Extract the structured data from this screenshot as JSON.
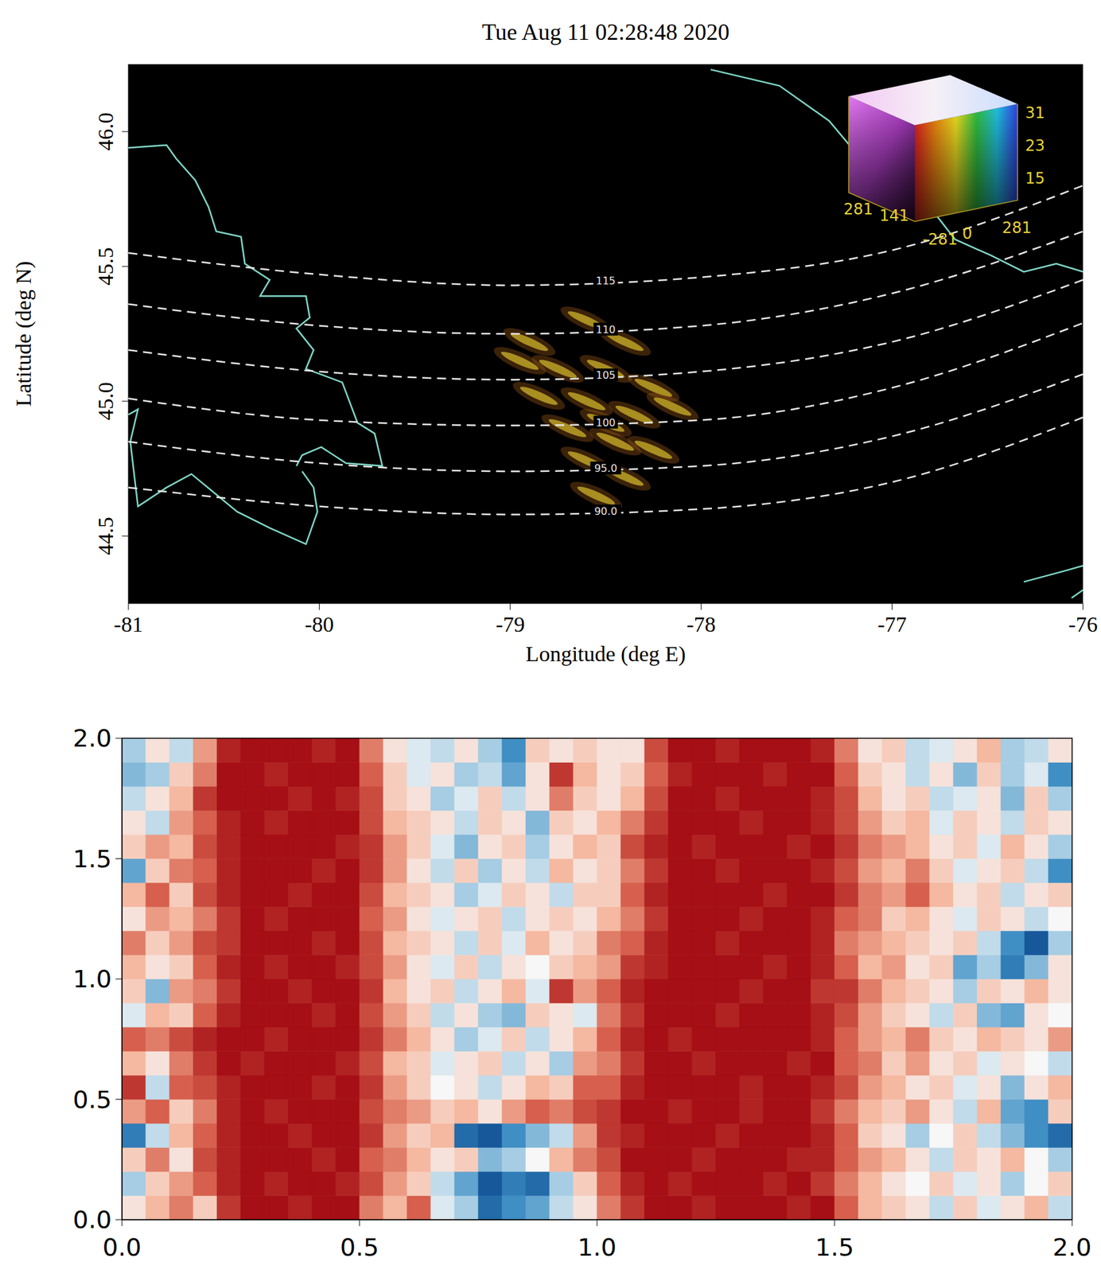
{
  "chart_data": [
    {
      "type": "map",
      "title": "Tue Aug 11 02:28:48 2020",
      "x_label": "Longitude (deg E)",
      "y_label": "Latitude (deg N)",
      "xlim": [
        -81,
        -76
      ],
      "xticks": [
        -81,
        -80,
        -79,
        -78,
        -77,
        -76
      ],
      "ylim": [
        44.25,
        46.25
      ],
      "yticks": [
        44.5,
        {
          "value": 45,
          "label": "45.0"
        },
        45.5,
        {
          "value": 46,
          "label": "46.0"
        }
      ],
      "grid": false,
      "contours": [
        {
          "label": "115",
          "color": "#e6e6e6",
          "line_style": "dashed",
          "x": [
            -81,
            -80,
            -79,
            -78,
            -77,
            -76
          ],
          "y": [
            45.55,
            45.47,
            45.43,
            45.46,
            45.56,
            45.8
          ]
        },
        {
          "label": "110",
          "color": "#e6e6e6",
          "line_style": "dashed",
          "x": [
            -81,
            -80,
            -79,
            -78,
            -77,
            -76
          ],
          "y": [
            45.36,
            45.28,
            45.25,
            45.28,
            45.4,
            45.63
          ]
        },
        {
          "label": "105",
          "color": "#e6e6e6",
          "line_style": "dashed",
          "x": [
            -81,
            -80,
            -79,
            -78,
            -77,
            -76
          ],
          "y": [
            45.19,
            45.11,
            45.08,
            45.11,
            45.22,
            45.45
          ]
        },
        {
          "label": "100",
          "color": "#e6e6e6",
          "line_style": "dashed",
          "x": [
            -81,
            -80,
            -79,
            -78,
            -77,
            -76
          ],
          "y": [
            45.01,
            44.93,
            44.91,
            44.93,
            45.05,
            45.29
          ]
        },
        {
          "label": "95.0",
          "color": "#e6e6e6",
          "line_style": "dashed",
          "x": [
            -81,
            -80,
            -79,
            -78,
            -77,
            -76
          ],
          "y": [
            44.85,
            44.77,
            44.74,
            44.76,
            44.87,
            45.1
          ]
        },
        {
          "label": "90.0",
          "color": "#e6e6e6",
          "line_style": "dashed",
          "x": [
            -81,
            -80,
            -79,
            -78,
            -77,
            -76
          ],
          "y": [
            44.68,
            44.61,
            44.58,
            44.6,
            44.7,
            44.94
          ]
        }
      ],
      "coastlines": [
        {
          "color": "#7fd6c6",
          "line_style": "solid",
          "x": [
            -81,
            -80.8,
            -80.75,
            -80.65,
            -80.58,
            -80.54,
            -80.41,
            -80.39,
            -80.26,
            -80.31,
            -80.07,
            -80.05,
            -80.12,
            -80.03,
            -80.07,
            -79.88,
            -79.8,
            -79.71,
            -79.67,
            -79.86,
            -79.99,
            -80.09,
            -80.12
          ],
          "y": [
            45.94,
            45.95,
            45.9,
            45.82,
            45.72,
            45.63,
            45.61,
            45.51,
            45.45,
            45.39,
            45.39,
            45.31,
            45.27,
            45.19,
            45.12,
            45.07,
            44.92,
            44.88,
            44.76,
            44.77,
            44.83,
            44.8,
            44.76
          ]
        },
        {
          "color": "#7fd6c6",
          "line_style": "solid",
          "x": [
            -81,
            -80.95,
            -80.99,
            -80.95,
            -80.8,
            -80.67,
            -80.43,
            -80.26,
            -80.07,
            -80.01,
            -80.03,
            -80.09
          ],
          "y": [
            44.95,
            44.97,
            44.85,
            44.61,
            44.68,
            44.73,
            44.59,
            44.53,
            44.47,
            44.59,
            44.68,
            44.74
          ]
        },
        {
          "color": "#7fd6c6",
          "line_style": "solid",
          "x": [
            -77.95,
            -77.59,
            -77.33,
            -77.2,
            -76.99,
            -76.78,
            -76.67,
            -76.48,
            -76.31,
            -76.14,
            -76
          ],
          "y": [
            46.23,
            46.17,
            46.04,
            45.93,
            45.81,
            45.7,
            45.6,
            45.54,
            45.48,
            45.51,
            45.48
          ]
        },
        {
          "color": "#7fd6c6",
          "line_style": "solid",
          "x": [
            -76.31,
            -76.1,
            -76
          ],
          "y": [
            44.33,
            44.37,
            44.39
          ]
        },
        {
          "color": "#7fd6c6",
          "line_style": "solid",
          "x": [
            -76.06,
            -76
          ],
          "y": [
            44.27,
            44.3
          ]
        }
      ],
      "airglow": {
        "color": "#d8bc2c",
        "x": [
          -78.9,
          -78.6,
          -78.4,
          -78.75,
          -78.5,
          -78.25,
          -78.85,
          -78.6,
          -78.35,
          -78.15,
          -78.7,
          -78.45,
          -78.25,
          -78.6,
          -78.4,
          -78.55,
          -78.95,
          -78.5
        ],
        "y": [
          45.22,
          45.3,
          45.22,
          45.12,
          45.12,
          45.05,
          45.02,
          45.0,
          44.95,
          44.98,
          44.9,
          44.85,
          44.82,
          44.78,
          44.72,
          44.65,
          45.15,
          44.92
        ]
      },
      "color_cube": {
        "vertical_ticks": [
          31,
          23,
          15
        ],
        "left_ticks": [
          281,
          141
        ],
        "front_ticks": [
          -281,
          0,
          281
        ]
      }
    },
    {
      "type": "heatmap",
      "xlim": [
        0,
        2
      ],
      "xticks": [
        {
          "value": 0,
          "label": "0.0"
        },
        0.5,
        {
          "value": 1,
          "label": "1.0"
        },
        1.5,
        {
          "value": 2,
          "label": "2.0"
        }
      ],
      "ylim": [
        0,
        2
      ],
      "yticks": [
        {
          "value": 0,
          "label": "0.0"
        },
        0.5,
        {
          "value": 1,
          "label": "1.0"
        },
        1.5,
        {
          "value": 2,
          "label": "2.0"
        }
      ],
      "grid": false,
      "clim": [
        -1,
        1
      ],
      "cells": [
        [
          0.1,
          0.3,
          0.5,
          0.2,
          0.8,
          1,
          1,
          0.9,
          1,
          1,
          0.5,
          0.3,
          0.6,
          -0.1,
          -0.3,
          -0.8,
          -0.6,
          -0.5,
          -0.2,
          0.1,
          0.5,
          0.8,
          1,
          1,
          0.9,
          1,
          1,
          1,
          0.9,
          1,
          0.6,
          0.3,
          0.2,
          0.1,
          -0.2,
          0.2,
          -0.1,
          0.1,
          0.3,
          -0.2
        ],
        [
          -0.3,
          0.2,
          0.4,
          0.6,
          0.9,
          1,
          0.9,
          1,
          1,
          0.9,
          0.7,
          0.4,
          0.2,
          -0.2,
          -0.5,
          -0.9,
          -0.7,
          -0.8,
          -0.3,
          0.2,
          0.6,
          0.9,
          1,
          0.9,
          1,
          1,
          1,
          0.9,
          1,
          0.8,
          0.5,
          0.3,
          0.1,
          0,
          0.2,
          -0.1,
          0.1,
          -0.3,
          0,
          0.2
        ],
        [
          0.2,
          0.5,
          0.1,
          0.7,
          0.9,
          1,
          1,
          1,
          0.9,
          1,
          0.6,
          0.5,
          0.3,
          0.1,
          0.2,
          -0.4,
          -0.3,
          0,
          0.3,
          0.5,
          0.7,
          1,
          1,
          1,
          0.9,
          1,
          1,
          1,
          0.9,
          0.9,
          0.6,
          0.4,
          0.3,
          0.1,
          -0.2,
          0.2,
          0.1,
          0.3,
          0,
          -0.3
        ],
        [
          -0.7,
          -0.2,
          0.3,
          0.6,
          0.9,
          1,
          1,
          0.9,
          1,
          1,
          0.8,
          0.4,
          0.2,
          0.3,
          -0.8,
          -0.9,
          -0.6,
          -0.4,
          -0.2,
          0.4,
          0.8,
          0.9,
          1,
          1,
          1,
          0.9,
          1,
          1,
          1,
          0.9,
          0.6,
          0.2,
          0.1,
          -0.3,
          0,
          0.2,
          -0.2,
          -0.4,
          -0.6,
          -0.8
        ],
        [
          0.4,
          0.6,
          0.2,
          0.5,
          0.9,
          1,
          0.9,
          1,
          1,
          1,
          0.7,
          0.5,
          0.4,
          0.2,
          0.3,
          0.1,
          0.4,
          0.6,
          0.5,
          0.7,
          0.8,
          1,
          1,
          0.9,
          1,
          1,
          0.9,
          1,
          1,
          0.8,
          0.5,
          0.3,
          0.2,
          0.4,
          0.1,
          -0.2,
          0.3,
          -0.5,
          -0.6,
          0.2
        ],
        [
          0.8,
          -0.2,
          0.6,
          0.7,
          0.9,
          1,
          1,
          1,
          0.9,
          1,
          0.8,
          0.4,
          0.2,
          0,
          0.1,
          -0.2,
          0.1,
          0.3,
          0.2,
          0.6,
          0.6,
          0.9,
          1,
          1,
          1,
          1,
          0.9,
          1,
          1,
          0.9,
          0.7,
          0.4,
          0.3,
          0.1,
          0.2,
          -0.1,
          0.1,
          -0.4,
          0.1,
          0.3
        ],
        [
          0.3,
          0.1,
          0.5,
          0.8,
          1,
          0.9,
          1,
          1,
          1,
          0.9,
          0.7,
          0.3,
          0.2,
          -0.1,
          0.1,
          0.2,
          -0.2,
          0.1,
          -0.3,
          0.4,
          0.5,
          0.8,
          1,
          1,
          0.9,
          1,
          1,
          1,
          0.9,
          1,
          0.6,
          0.5,
          0.2,
          0.4,
          0.1,
          0.2,
          -0.1,
          0.1,
          0,
          -0.2
        ],
        [
          0.6,
          0.5,
          0.7,
          0.9,
          1,
          1,
          0.9,
          1,
          1,
          1,
          0.8,
          0.5,
          0.3,
          0.1,
          -0.3,
          -0.1,
          0.2,
          -0.2,
          0.1,
          0.3,
          0.6,
          0.9,
          1,
          0.9,
          1,
          1,
          1,
          1,
          1,
          0.9,
          0.6,
          0.4,
          0.3,
          0.5,
          0.2,
          0.1,
          0.3,
          0.2,
          0.1,
          0.4
        ],
        [
          -0.1,
          0.3,
          0.2,
          0.6,
          0.9,
          1,
          1,
          1,
          0.9,
          1,
          0.7,
          0.4,
          0.2,
          -0.2,
          0.1,
          -0.3,
          -0.4,
          0.2,
          0.1,
          -0.1,
          0.5,
          0.8,
          1,
          1,
          1,
          0.9,
          1,
          1,
          1,
          0.9,
          0.7,
          0.4,
          0.2,
          0.1,
          -0.2,
          0.2,
          -0.4,
          -0.5,
          0.1,
          0
        ],
        [
          0.2,
          -0.4,
          0.4,
          0.5,
          0.8,
          1,
          1,
          0.9,
          1,
          1,
          0.8,
          0.3,
          0.1,
          0.2,
          -0.2,
          0.1,
          0.3,
          -0.1,
          0.8,
          0.4,
          0.6,
          0.9,
          1,
          1,
          1,
          1,
          0.9,
          1,
          1,
          0.8,
          0.8,
          0.5,
          0.3,
          0.2,
          0.1,
          -0.3,
          0.2,
          0.1,
          0.3,
          0.1
        ],
        [
          0.3,
          0.1,
          0.2,
          0.6,
          0.9,
          1,
          0.9,
          1,
          1,
          0.9,
          0.7,
          0.4,
          0.1,
          -0.1,
          0.2,
          -0.2,
          0.1,
          0,
          0.2,
          0.3,
          0.4,
          0.8,
          0.9,
          1,
          1,
          1,
          1,
          0.9,
          1,
          0.9,
          0.6,
          0.3,
          0.4,
          0.1,
          0.2,
          -0.5,
          -0.3,
          -0.7,
          -0.4,
          0.1
        ],
        [
          0.5,
          0.2,
          0.4,
          0.7,
          0.8,
          1,
          1,
          1,
          0.9,
          1,
          0.7,
          0.3,
          0.2,
          0.1,
          -0.2,
          0.2,
          -0.1,
          0.3,
          0.1,
          0.2,
          0.5,
          0.6,
          0.9,
          1,
          1,
          0.9,
          1,
          1,
          1,
          0.9,
          0.5,
          0.4,
          0.3,
          0.2,
          0.1,
          0.2,
          -0.2,
          -0.6,
          -0.9,
          -0.3
        ],
        [
          0.1,
          0.4,
          0.3,
          0.5,
          0.8,
          1,
          0.9,
          1,
          1,
          1,
          0.6,
          0.4,
          0.1,
          -0.1,
          0.1,
          0.2,
          -0.2,
          0.1,
          0.2,
          0.1,
          0.3,
          0.5,
          0.8,
          1,
          1,
          1,
          0.9,
          1,
          1,
          0.9,
          0.6,
          0.5,
          0.2,
          0.3,
          0.1,
          -0.1,
          0.2,
          0.1,
          -0.2,
          0
        ],
        [
          0.3,
          0.6,
          0.2,
          0.7,
          0.9,
          1,
          1,
          0.9,
          1,
          1,
          0.7,
          0.3,
          0.2,
          0.1,
          -0.3,
          -0.1,
          0.2,
          0.1,
          -0.2,
          0.2,
          0.2,
          0.6,
          0.9,
          1,
          1,
          1,
          1,
          0.9,
          1,
          1,
          0.8,
          0.5,
          0.4,
          0.6,
          0.3,
          0.1,
          0.2,
          -0.2,
          0.1,
          0.2
        ],
        [
          -0.5,
          0.2,
          0.5,
          0.6,
          0.9,
          1,
          1,
          1,
          0.9,
          1,
          0.8,
          0.4,
          0.1,
          -0.2,
          0.2,
          -0.3,
          0.1,
          -0.2,
          0.3,
          0.1,
          0.2,
          0.5,
          0.8,
          1,
          1,
          0.9,
          1,
          1,
          1,
          0.9,
          0.7,
          0.4,
          0.3,
          0.5,
          0.2,
          -0.1,
          0.1,
          0.2,
          -0.2,
          -0.6
        ],
        [
          0.2,
          0.4,
          0.3,
          0.7,
          0.9,
          1,
          1,
          1,
          1,
          0.9,
          0.8,
          0.4,
          0.2,
          -0.1,
          -0.4,
          0.1,
          0.2,
          -0.3,
          0.1,
          0.3,
          0.2,
          0.7,
          0.9,
          1,
          0.9,
          1,
          1,
          1,
          0.9,
          1,
          0.8,
          0.5,
          0.4,
          0.3,
          0.1,
          0.2,
          -0.1,
          0.3,
          0.1,
          -0.3
        ],
        [
          0.1,
          -0.2,
          0.4,
          0.6,
          0.9,
          1,
          0.9,
          1,
          1,
          1,
          0.7,
          0.3,
          0.2,
          0.1,
          -0.2,
          0.2,
          0.1,
          -0.4,
          0.2,
          0.1,
          0.3,
          0.5,
          0.8,
          1,
          1,
          1,
          0.9,
          1,
          1,
          0.9,
          0.7,
          0.4,
          0.2,
          0.3,
          -0.1,
          0.2,
          0.1,
          -0.2,
          0.2,
          0.1
        ],
        [
          -0.2,
          0.1,
          0.3,
          0.8,
          1,
          1,
          1,
          0.9,
          1,
          0.9,
          0.7,
          0.2,
          0.1,
          -0.3,
          -0.1,
          0.2,
          -0.2,
          0.1,
          0.5,
          0.2,
          0.1,
          0.3,
          0.7,
          1,
          1,
          0.9,
          1,
          1,
          1,
          0.9,
          0.7,
          0.3,
          0.1,
          0.2,
          -0.2,
          -0.1,
          0.1,
          -0.4,
          0.2,
          -0.3
        ],
        [
          -0.4,
          -0.3,
          0.2,
          0.5,
          1,
          1,
          0.9,
          1,
          1,
          1,
          0.6,
          0.2,
          -0.1,
          0.1,
          -0.3,
          -0.2,
          -0.5,
          0.1,
          0.8,
          0.3,
          0.1,
          0.2,
          0.6,
          0.9,
          1,
          1,
          1,
          0.9,
          1,
          1,
          0.6,
          0.2,
          0.1,
          -0.2,
          0.1,
          -0.4,
          0.2,
          -0.3,
          -0.1,
          -0.6
        ],
        [
          -0.3,
          0.1,
          -0.2,
          0.4,
          0.9,
          1,
          1,
          1,
          0.9,
          1,
          0.5,
          0.1,
          -0.1,
          -0.2,
          0.1,
          -0.3,
          -0.6,
          0.2,
          0.1,
          0.2,
          0.1,
          0.1,
          0.7,
          1,
          1,
          0.9,
          1,
          1,
          1,
          0.9,
          0.5,
          0.1,
          0.2,
          -0.2,
          -0.1,
          0.1,
          0.3,
          -0.3,
          -0.2,
          0.1
        ]
      ]
    }
  ]
}
